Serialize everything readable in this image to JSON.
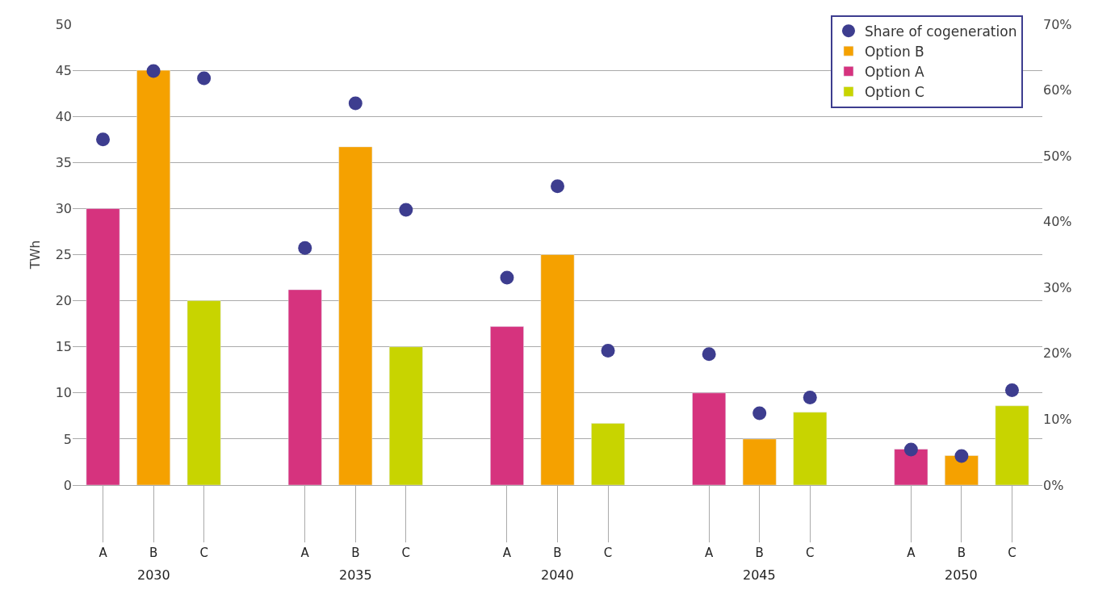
{
  "chart_data": {
    "type": "bar",
    "ylabel": "TWh",
    "categories": [
      "A",
      "B",
      "C",
      "A",
      "B",
      "C",
      "A",
      "B",
      "C",
      "A",
      "B",
      "C",
      "A",
      "B",
      "C"
    ],
    "series": [
      {
        "name": "Share of cogeneration",
        "type": "scatter",
        "axis": "y2",
        "color": "#3d3d8f",
        "values": [
          52.5,
          62.9,
          61.8,
          36.0,
          58.0,
          41.8,
          31.5,
          45.4,
          20.4,
          19.9,
          10.9,
          13.3,
          5.4,
          4.4,
          14.4
        ]
      },
      {
        "name": "Option A",
        "color": "#d6337e",
        "values": [
          30,
          null,
          null,
          21.2,
          null,
          null,
          17.2,
          null,
          null,
          10,
          null,
          null,
          3.9,
          null,
          null
        ]
      },
      {
        "name": "Option B",
        "color": "#f5a100",
        "values": [
          null,
          45,
          null,
          null,
          36.7,
          null,
          null,
          25,
          null,
          null,
          5,
          null,
          null,
          3.2,
          null
        ]
      },
      {
        "name": "Option C",
        "color": "#c8d400",
        "values": [
          null,
          null,
          20,
          null,
          null,
          15,
          null,
          null,
          6.7,
          null,
          null,
          7.9,
          null,
          null,
          8.6
        ]
      }
    ],
    "annotations": [
      "2030",
      "2035",
      "2040",
      "2045",
      "2050"
    ],
    "ylim": [
      0,
      50
    ],
    "yticks": [
      0,
      5,
      10,
      15,
      20,
      25,
      30,
      35,
      40,
      45,
      50
    ],
    "y2lim": [
      0,
      70
    ],
    "y2ticks": [
      {
        "value": 0,
        "label": "0%"
      },
      {
        "value": 10,
        "label": "10%"
      },
      {
        "value": 20,
        "label": "20%"
      },
      {
        "value": 30,
        "label": "30%"
      },
      {
        "value": 40,
        "label": "40%"
      },
      {
        "value": 50,
        "label": "50%"
      },
      {
        "value": 60,
        "label": "60%"
      },
      {
        "value": 70,
        "label": "70%"
      }
    ],
    "grid": "y",
    "legend": "top right",
    "marker": "circle"
  }
}
